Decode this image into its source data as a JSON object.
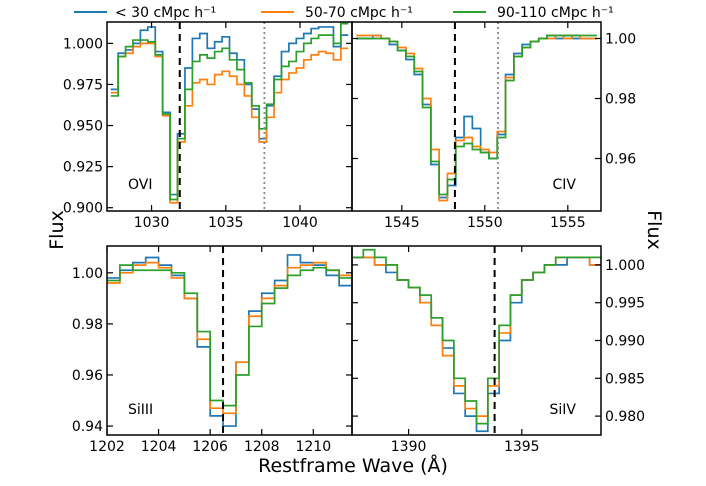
{
  "chart_data": {
    "type": "line",
    "figure": {
      "xlabel": "Restframe Wave (Å)",
      "ylabel_left": "Flux",
      "ylabel_right": "Flux"
    },
    "legend": [
      {
        "name": "< 30 cMpc h⁻¹",
        "label": "< 30 cMpc h⁻¹",
        "color": "#1f77b4"
      },
      {
        "name": "50-70 cMpc h⁻¹",
        "label": "50-70 cMpc h⁻¹",
        "color": "#ff7f0e"
      },
      {
        "name": "90-110 cMpc h⁻¹",
        "label": "90-110 cMpc h⁻¹",
        "color": "#2ca02c"
      }
    ],
    "panels": [
      {
        "id": "ovi",
        "label": "OVI",
        "y_axis_side": "left",
        "xlim": [
          1027.0,
          1043.5
        ],
        "ylim": [
          0.898,
          1.013
        ],
        "xticks": [
          1030,
          1035,
          1040
        ],
        "xtick_labels": [
          "1030",
          "1035",
          "1040"
        ],
        "yticks": [
          0.9,
          0.925,
          0.95,
          0.975,
          1.0
        ],
        "ytick_labels": [
          "0.900",
          "0.925",
          "0.950",
          "0.975",
          "1.000"
        ],
        "vlines": [
          {
            "x": 1031.9,
            "style": "dashed"
          },
          {
            "x": 1037.6,
            "style": "dotted"
          }
        ],
        "x": [
          1027.5,
          1028.0,
          1028.5,
          1029.0,
          1029.5,
          1030.0,
          1030.5,
          1031.0,
          1031.5,
          1032.0,
          1032.5,
          1033.0,
          1033.5,
          1034.0,
          1034.5,
          1035.0,
          1035.5,
          1036.0,
          1036.5,
          1037.0,
          1037.5,
          1038.0,
          1038.5,
          1039.0,
          1039.5,
          1040.0,
          1040.5,
          1041.0,
          1041.5,
          1042.0,
          1042.5,
          1043.0
        ],
        "series": [
          {
            "name": "< 30 cMpc h⁻¹",
            "values": [
              0.972,
              0.994,
              0.996,
              1.0,
              1.008,
              1.01,
              0.995,
              0.958,
              0.908,
              0.945,
              0.985,
              1.003,
              1.006,
              0.997,
              1.001,
              1.004,
              0.994,
              0.99,
              0.975,
              0.96,
              0.942,
              0.962,
              0.98,
              0.995,
              1.0,
              1.003,
              1.006,
              1.009,
              1.01,
              1.01,
              0.998,
              1.005
            ]
          },
          {
            "name": "50-70 cMpc h⁻¹",
            "values": [
              0.97,
              0.992,
              0.994,
              0.998,
              1.0,
              1.0,
              0.992,
              0.956,
              0.903,
              0.94,
              0.962,
              0.976,
              0.978,
              0.975,
              0.981,
              0.983,
              0.98,
              0.975,
              0.968,
              0.955,
              0.94,
              0.955,
              0.97,
              0.978,
              0.982,
              0.985,
              0.99,
              0.993,
              0.995,
              0.994,
              0.99,
              0.997
            ]
          },
          {
            "name": "90-110 cMpc h⁻¹",
            "values": [
              0.968,
              0.992,
              0.998,
              1.002,
              1.002,
              1.001,
              0.993,
              0.957,
              0.905,
              0.942,
              0.972,
              0.989,
              0.993,
              0.991,
              0.995,
              0.997,
              0.99,
              0.984,
              0.976,
              0.962,
              0.948,
              0.963,
              0.978,
              0.986,
              0.989,
              0.995,
              1.0,
              1.003,
              1.005,
              1.005,
              1.0,
              1.012
            ]
          }
        ]
      },
      {
        "id": "civ",
        "label": "CIV",
        "y_axis_side": "right",
        "xlim": [
          1542.0,
          1557.0
        ],
        "ylim": [
          0.9425,
          1.0055
        ],
        "xticks": [
          1545,
          1550,
          1555
        ],
        "xtick_labels": [
          "1545",
          "1550",
          "1555"
        ],
        "yticks": [
          0.96,
          0.98,
          1.0
        ],
        "ytick_labels": [
          "0.96",
          "0.98",
          "1.00"
        ],
        "vlines": [
          {
            "x": 1548.2,
            "style": "dashed"
          },
          {
            "x": 1550.8,
            "style": "dotted"
          }
        ],
        "x": [
          1542.5,
          1543.0,
          1543.5,
          1544.0,
          1544.5,
          1545.0,
          1545.5,
          1546.0,
          1546.5,
          1547.0,
          1547.5,
          1548.0,
          1548.5,
          1549.0,
          1549.5,
          1550.0,
          1550.5,
          1551.0,
          1551.5,
          1552.0,
          1552.5,
          1553.0,
          1553.5,
          1554.0,
          1554.5,
          1555.0,
          1555.5,
          1556.0,
          1556.5
        ],
        "series": [
          {
            "name": "< 30 cMpc h⁻¹",
            "values": [
              1.0,
              1.0,
              1.001,
              1.0,
              0.998,
              0.996,
              0.993,
              0.988,
              0.978,
              0.958,
              0.947,
              0.951,
              0.967,
              0.974,
              0.97,
              0.962,
              0.96,
              0.968,
              0.988,
              0.995,
              0.998,
              0.999,
              1.0,
              1.001,
              1.0,
              1.001,
              1.0,
              1.0,
              1.0
            ]
          },
          {
            "name": "50-70 cMpc h⁻¹",
            "values": [
              1.001,
              1.001,
              1.001,
              1.0,
              0.999,
              0.997,
              0.995,
              0.99,
              0.98,
              0.963,
              0.946,
              0.955,
              0.966,
              0.967,
              0.964,
              0.963,
              0.962,
              0.969,
              0.987,
              0.994,
              0.997,
              0.999,
              1.0,
              1.0,
              1.001,
              1.0,
              1.001,
              1.0,
              1.0
            ]
          },
          {
            "name": "90-110 cMpc h⁻¹",
            "values": [
              1.0,
              1.0,
              1.0,
              1.0,
              0.999,
              0.996,
              0.994,
              0.989,
              0.977,
              0.959,
              0.948,
              0.953,
              0.964,
              0.965,
              0.963,
              0.962,
              0.96,
              0.967,
              0.986,
              0.994,
              0.997,
              0.999,
              1.0,
              1.001,
              1.001,
              1.001,
              1.001,
              1.001,
              1.001
            ]
          }
        ]
      },
      {
        "id": "siiii",
        "label": "SiIII",
        "y_axis_side": "left",
        "xlim": [
          1202.0,
          1211.5
        ],
        "ylim": [
          0.9365,
          1.0105
        ],
        "xticks": [
          1202,
          1204,
          1206,
          1208,
          1210
        ],
        "xtick_labels": [
          "1202",
          "1204",
          "1206",
          "1208",
          "1210"
        ],
        "yticks": [
          0.94,
          0.96,
          0.98,
          1.0
        ],
        "ytick_labels": [
          "0.94",
          "0.96",
          "0.98",
          "1.00"
        ],
        "vlines": [
          {
            "x": 1206.5,
            "style": "dashed"
          }
        ],
        "x": [
          1202.25,
          1202.75,
          1203.25,
          1203.75,
          1204.25,
          1204.75,
          1205.25,
          1205.75,
          1206.25,
          1206.75,
          1207.25,
          1207.75,
          1208.25,
          1208.75,
          1209.25,
          1209.75,
          1210.25,
          1210.75,
          1211.25
        ],
        "series": [
          {
            "name": "< 30 cMpc h⁻¹",
            "values": [
              0.998,
              1.001,
              1.004,
              1.006,
              1.003,
              0.999,
              0.99,
              0.971,
              0.944,
              0.94,
              0.965,
              0.985,
              0.992,
              0.997,
              1.007,
              1.004,
              1.003,
              0.999,
              0.995
            ]
          },
          {
            "name": "50-70 cMpc h⁻¹",
            "values": [
              0.996,
              1.0,
              1.003,
              1.004,
              1.002,
              0.998,
              0.99,
              0.974,
              0.947,
              0.945,
              0.965,
              0.983,
              0.99,
              0.995,
              1.002,
              1.003,
              1.004,
              1.001,
              0.999
            ]
          },
          {
            "name": "90-110 cMpc h⁻¹",
            "values": [
              0.997,
              1.003,
              1.001,
              1.001,
              1.001,
              1.0,
              0.992,
              0.977,
              0.95,
              0.948,
              0.96,
              0.979,
              0.988,
              0.994,
              0.999,
              1.001,
              1.002,
              1.001,
              0.998
            ]
          }
        ]
      },
      {
        "id": "siiv",
        "label": "SiIV",
        "y_axis_side": "right",
        "xlim": [
          1387.5,
          1398.5
        ],
        "ylim": [
          0.9775,
          1.0025
        ],
        "xticks": [
          1390,
          1395
        ],
        "xtick_labels": [
          "1390",
          "1395"
        ],
        "yticks": [
          0.98,
          0.985,
          0.99,
          0.995,
          1.0
        ],
        "ytick_labels": [
          "0.980",
          "0.985",
          "0.990",
          "0.995",
          "1.000"
        ],
        "vlines": [
          {
            "x": 1393.8,
            "style": "dashed"
          }
        ],
        "x": [
          1387.75,
          1388.25,
          1388.75,
          1389.25,
          1389.75,
          1390.25,
          1390.75,
          1391.25,
          1391.75,
          1392.25,
          1392.75,
          1393.25,
          1393.75,
          1394.25,
          1394.75,
          1395.25,
          1395.75,
          1396.25,
          1396.75,
          1397.25,
          1397.75,
          1398.25
        ],
        "series": [
          {
            "name": "< 30 cMpc h⁻¹",
            "values": [
              1.001,
              1.001,
              1.0,
              0.999,
              0.998,
              0.997,
              0.995,
              0.993,
              0.989,
              0.983,
              0.98,
              0.978,
              0.983,
              0.99,
              0.995,
              0.998,
              0.999,
              1.0,
              1.0,
              1.001,
              1.001,
              1.0
            ]
          },
          {
            "name": "50-70 cMpc h⁻¹",
            "values": [
              1.001,
              1.001,
              1.0,
              1.0,
              0.998,
              0.997,
              0.995,
              0.992,
              0.988,
              0.984,
              0.981,
              0.98,
              0.984,
              0.991,
              0.996,
              0.998,
              0.999,
              1.0,
              1.001,
              1.001,
              1.001,
              1.0
            ]
          },
          {
            "name": "90-110 cMpc h⁻¹",
            "values": [
              1.001,
              1.002,
              1.001,
              1.0,
              0.998,
              0.997,
              0.996,
              0.993,
              0.99,
              0.985,
              0.982,
              0.979,
              0.985,
              0.992,
              0.996,
              0.998,
              0.999,
              1.0,
              1.001,
              1.001,
              1.001,
              1.001
            ]
          }
        ]
      }
    ]
  }
}
